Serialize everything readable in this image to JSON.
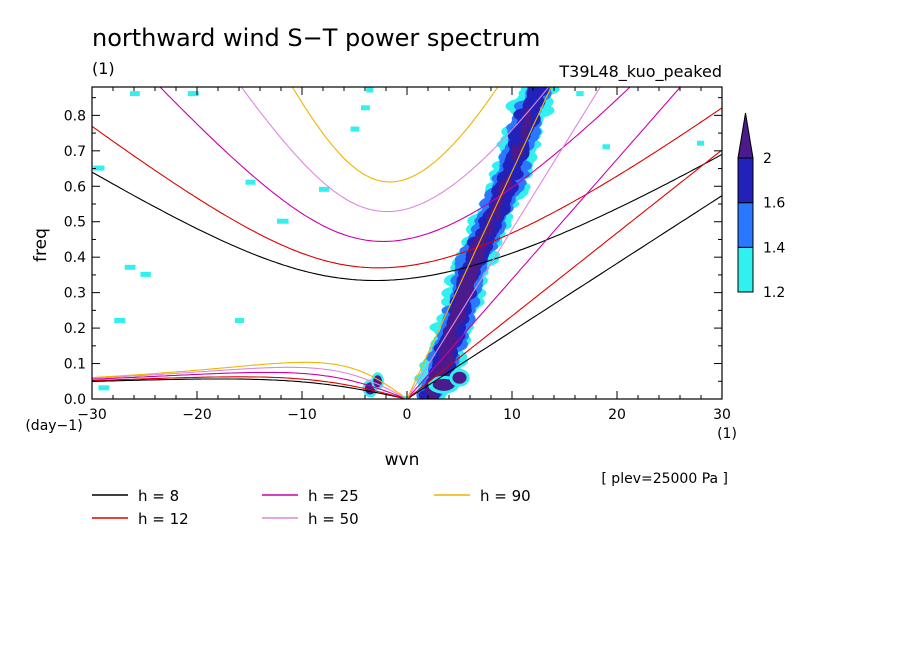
{
  "chart_data": {
    "type": "contour",
    "title": "northward wind S−T power spectrum",
    "units_left": "(1)",
    "run_label": "T39L48_kuo_peaked",
    "xlabel": "wvn",
    "ylabel": "freq",
    "x_unit": "(1)",
    "y_unit": "(day−1)",
    "level_note": "[ plev=25000 Pa ]",
    "xlim": [
      -30,
      30
    ],
    "ylim": [
      0,
      0.88
    ],
    "x_ticks": [
      -30,
      -20,
      -10,
      0,
      10,
      20,
      30
    ],
    "x_tick_labels": [
      "−30",
      "−20",
      "−10",
      "0",
      "10",
      "20",
      "30"
    ],
    "y_ticks": [
      0,
      0.1,
      0.2,
      0.3,
      0.4,
      0.5,
      0.6,
      0.7,
      0.8
    ],
    "y_tick_labels": [
      "0.0",
      "0.1",
      "0.2",
      "0.3",
      "0.4",
      "0.5",
      "0.6",
      "0.7",
      "0.8"
    ],
    "colorbar": {
      "levels": [
        "1.2",
        "1.4",
        "1.6",
        "2"
      ],
      "colors": [
        "#33f0f0",
        "#2a78ff",
        "#2222bb",
        "#4b1a8c"
      ]
    },
    "dispersion_curves": [
      {
        "label": "h =  8",
        "h": 8,
        "color": "#000000"
      },
      {
        "label": "h = 12",
        "h": 12,
        "color": "#dd0000"
      },
      {
        "label": "h = 25",
        "h": 25,
        "color": "#cc00aa"
      },
      {
        "label": "h = 50",
        "h": 50,
        "color": "#dd88dd"
      },
      {
        "label": "h = 90",
        "h": 90,
        "color": "#f0b400"
      }
    ],
    "kelvin_band": {
      "axis": [
        [
          2,
          0.0
        ],
        [
          3.5,
          0.1
        ],
        [
          4.5,
          0.2
        ],
        [
          5.5,
          0.3
        ],
        [
          6.5,
          0.4
        ],
        [
          8,
          0.5
        ],
        [
          9.5,
          0.6
        ],
        [
          10.5,
          0.7
        ],
        [
          11.5,
          0.8
        ],
        [
          12.5,
          0.88
        ]
      ],
      "shaded_levels": [
        1.2,
        1.4,
        1.6,
        2
      ]
    }
  }
}
